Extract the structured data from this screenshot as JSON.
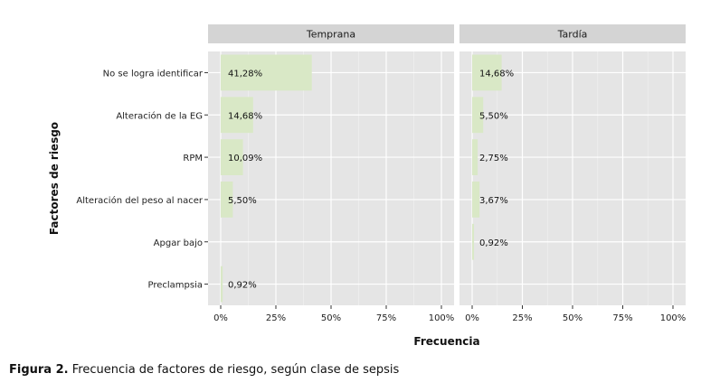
{
  "chart_data": {
    "type": "bar",
    "orientation": "horizontal",
    "categories": [
      "No se logra identificar",
      "Alteración de la EG",
      "RPM",
      "Alteración del peso al nacer",
      "Apgar bajo",
      "Preclampsia"
    ],
    "panels": [
      {
        "name": "Temprana",
        "values": [
          41.28,
          14.68,
          10.09,
          5.5,
          0,
          0.92
        ],
        "labels": [
          "41,28%",
          "14,68%",
          "10,09%",
          "5,50%",
          "",
          "0,92%"
        ]
      },
      {
        "name": "Tardía",
        "values": [
          14.68,
          5.5,
          2.75,
          3.67,
          0.92,
          0
        ],
        "labels": [
          "14,68%",
          "5,50%",
          "2,75%",
          "3,67%",
          "0,92%",
          ""
        ]
      }
    ],
    "xlabel": "Frecuencia",
    "ylabel": "Factores de riesgo",
    "xlim": [
      0,
      100
    ],
    "xticks": [
      "0%",
      "25%",
      "50%",
      "75%",
      "100%"
    ],
    "bar_color": "#d9e8c6",
    "panel_background": "#e5e5e5",
    "strip_background": "#d4d4d4",
    "grid": true
  },
  "caption": {
    "label": "Figura 2.",
    "text": " Frecuencia de factores de riesgo, según clase de sepsis"
  }
}
